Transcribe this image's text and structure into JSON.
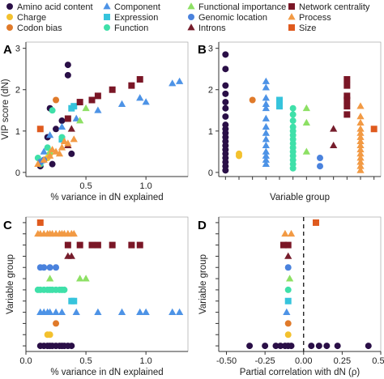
{
  "legend": {
    "items": [
      {
        "label": "Amino acid content",
        "color": "#2a0f47",
        "shape": "circle"
      },
      {
        "label": "Charge",
        "color": "#f3c12e",
        "shape": "circle"
      },
      {
        "label": "Codon bias",
        "color": "#e07a2a",
        "shape": "circle"
      },
      {
        "label": "Component",
        "color": "#4d93e6",
        "shape": "triangle"
      },
      {
        "label": "Expression",
        "color": "#36c4dc",
        "shape": "square"
      },
      {
        "label": "Function",
        "color": "#3fe0a9",
        "shape": "circle"
      },
      {
        "label": "Functional importance",
        "color": "#8de064",
        "shape": "triangle"
      },
      {
        "label": "Genomic location",
        "color": "#4a82dd",
        "shape": "circle"
      },
      {
        "label": "Introns",
        "color": "#761d2c",
        "shape": "triangle"
      },
      {
        "label": "Network centrality",
        "color": "#7a1626",
        "shape": "square"
      },
      {
        "label": "Process",
        "color": "#f29a44",
        "shape": "triangle"
      },
      {
        "label": "Size",
        "color": "#df5a1e",
        "shape": "square"
      }
    ]
  },
  "chart_data": [
    {
      "panel": "A",
      "type": "scatter",
      "xlabel": "% variance in dN explained",
      "ylabel": "VIP score (dN)",
      "xlim": [
        0,
        1.35
      ],
      "ylim": [
        -0.1,
        3.15
      ],
      "xticks": [
        "0.5",
        "1.0"
      ],
      "yticks": [
        "0",
        "1",
        "2",
        "3"
      ],
      "points": [
        {
          "g": 0,
          "x": 0.35,
          "y": 2.6
        },
        {
          "g": 0,
          "x": 0.35,
          "y": 2.35
        },
        {
          "g": 0,
          "x": 0.2,
          "y": 1.55
        },
        {
          "g": 0,
          "x": 0.3,
          "y": 1.25
        },
        {
          "g": 0,
          "x": 0.25,
          "y": 1.05
        },
        {
          "g": 0,
          "x": 0.18,
          "y": 0.85
        },
        {
          "g": 0,
          "x": 0.3,
          "y": 0.8
        },
        {
          "g": 0,
          "x": 0.15,
          "y": 0.3
        },
        {
          "g": 0,
          "x": 0.38,
          "y": 0.45
        },
        {
          "g": 0,
          "x": 0.22,
          "y": 0.2
        },
        {
          "g": 0,
          "x": 0.12,
          "y": 0.15
        },
        {
          "g": 1,
          "x": 0.2,
          "y": 0.45
        },
        {
          "g": 1,
          "x": 0.18,
          "y": 0.35
        },
        {
          "g": 2,
          "x": 0.25,
          "y": 1.75
        },
        {
          "g": 3,
          "x": 1.28,
          "y": 2.2
        },
        {
          "g": 3,
          "x": 1.22,
          "y": 2.15
        },
        {
          "g": 3,
          "x": 1.0,
          "y": 1.7
        },
        {
          "g": 3,
          "x": 0.95,
          "y": 1.8
        },
        {
          "g": 3,
          "x": 0.8,
          "y": 1.65
        },
        {
          "g": 3,
          "x": 0.6,
          "y": 1.5
        },
        {
          "g": 3,
          "x": 0.42,
          "y": 1.3
        },
        {
          "g": 3,
          "x": 0.3,
          "y": 1.1
        },
        {
          "g": 3,
          "x": 0.2,
          "y": 0.9
        },
        {
          "g": 3,
          "x": 0.15,
          "y": 0.5
        },
        {
          "g": 4,
          "x": 0.4,
          "y": 1.6
        },
        {
          "g": 4,
          "x": 0.38,
          "y": 1.55
        },
        {
          "g": 4,
          "x": 0.3,
          "y": 0.8
        },
        {
          "g": 5,
          "x": 0.22,
          "y": 1.5
        },
        {
          "g": 5,
          "x": 0.3,
          "y": 0.85
        },
        {
          "g": 5,
          "x": 0.18,
          "y": 0.6
        },
        {
          "g": 5,
          "x": 0.12,
          "y": 0.2
        },
        {
          "g": 5,
          "x": 0.1,
          "y": 0.35
        },
        {
          "g": 6,
          "x": 0.5,
          "y": 1.55
        },
        {
          "g": 6,
          "x": 0.45,
          "y": 1.25
        },
        {
          "g": 6,
          "x": 0.2,
          "y": 0.5
        },
        {
          "g": 7,
          "x": 0.12,
          "y": 0.25
        },
        {
          "g": 7,
          "x": 0.15,
          "y": 0.3
        },
        {
          "g": 8,
          "x": 0.38,
          "y": 1.05
        },
        {
          "g": 8,
          "x": 0.35,
          "y": 0.65
        },
        {
          "g": 9,
          "x": 0.95,
          "y": 2.25
        },
        {
          "g": 9,
          "x": 0.88,
          "y": 2.1
        },
        {
          "g": 9,
          "x": 0.72,
          "y": 2.0
        },
        {
          "g": 9,
          "x": 0.6,
          "y": 1.85
        },
        {
          "g": 9,
          "x": 0.55,
          "y": 1.75
        },
        {
          "g": 9,
          "x": 0.45,
          "y": 1.7
        },
        {
          "g": 9,
          "x": 0.35,
          "y": 1.3
        },
        {
          "g": 10,
          "x": 0.4,
          "y": 0.8
        },
        {
          "g": 10,
          "x": 0.35,
          "y": 0.7
        },
        {
          "g": 10,
          "x": 0.3,
          "y": 0.6
        },
        {
          "g": 10,
          "x": 0.25,
          "y": 0.5
        },
        {
          "g": 10,
          "x": 0.2,
          "y": 0.4
        },
        {
          "g": 10,
          "x": 0.15,
          "y": 0.3
        },
        {
          "g": 10,
          "x": 0.1,
          "y": 0.2
        },
        {
          "g": 10,
          "x": 0.28,
          "y": 0.45
        },
        {
          "g": 10,
          "x": 0.32,
          "y": 0.75
        },
        {
          "g": 10,
          "x": 0.22,
          "y": 0.55
        },
        {
          "g": 11,
          "x": 0.12,
          "y": 1.05
        }
      ]
    },
    {
      "panel": "B",
      "type": "scatter",
      "xlabel": "Variable group",
      "ylabel": "",
      "ylim": [
        -0.1,
        3.15
      ],
      "yticks": [
        "0",
        "1",
        "2",
        "3"
      ],
      "columns": [
        {
          "g": 0,
          "values": [
            2.85,
            2.5,
            2.1,
            1.9,
            1.7,
            1.55,
            1.35,
            1.15,
            1.05,
            0.95,
            0.85,
            0.75,
            0.65,
            0.55,
            0.45,
            0.35,
            0.25,
            0.15,
            0.05
          ]
        },
        {
          "g": 1,
          "values": [
            0.45,
            0.4
          ]
        },
        {
          "g": 2,
          "values": [
            1.75
          ]
        },
        {
          "g": 3,
          "values": [
            2.2,
            2.05,
            1.8,
            1.65,
            1.55,
            1.3,
            1.1,
            0.95,
            0.8,
            0.65,
            0.5,
            0.4,
            0.3,
            0.2
          ]
        },
        {
          "g": 4,
          "values": [
            1.75,
            1.6
          ]
        },
        {
          "g": 5,
          "values": [
            1.55,
            1.4,
            1.25,
            1.1,
            1.0,
            0.9,
            0.8,
            0.7,
            0.6,
            0.5,
            0.4,
            0.3,
            0.2,
            0.1
          ]
        },
        {
          "g": 6,
          "values": [
            1.55,
            1.2,
            0.5
          ]
        },
        {
          "g": 7,
          "values": [
            0.35,
            0.15
          ]
        },
        {
          "g": 8,
          "values": [
            1.05,
            0.65
          ]
        },
        {
          "g": 9,
          "values": [
            2.25,
            2.1,
            1.85,
            1.75,
            1.6,
            1.4
          ]
        },
        {
          "g": 10,
          "values": [
            1.6,
            1.35,
            1.2,
            1.05,
            0.95,
            0.85,
            0.75,
            0.65,
            0.55,
            0.45,
            0.35,
            0.25,
            0.15,
            0.05
          ]
        },
        {
          "g": 11,
          "values": [
            1.05
          ]
        }
      ]
    },
    {
      "panel": "C",
      "type": "scatter",
      "xlabel": "% variance in dN explained",
      "ylabel": "Variable group",
      "xlim": [
        0,
        1.35
      ],
      "xticks": [
        "0.0",
        "0.5",
        "1.0"
      ],
      "rows": [
        {
          "g": 0,
          "values": [
            0.12,
            0.15,
            0.18,
            0.2,
            0.22,
            0.25,
            0.28,
            0.3,
            0.32,
            0.35,
            0.38
          ]
        },
        {
          "g": 1,
          "values": [
            0.2,
            0.18
          ]
        },
        {
          "g": 2,
          "values": [
            0.25
          ]
        },
        {
          "g": 3,
          "values": [
            0.12,
            0.15,
            0.18,
            0.2,
            0.25,
            0.3,
            0.42,
            0.6,
            0.8,
            0.95,
            1.0,
            1.22,
            1.28
          ]
        },
        {
          "g": 4,
          "values": [
            0.38,
            0.4
          ]
        },
        {
          "g": 5,
          "values": [
            0.1,
            0.12,
            0.15,
            0.18,
            0.2,
            0.22,
            0.25,
            0.28,
            0.3,
            0.32
          ]
        },
        {
          "g": 6,
          "values": [
            0.2,
            0.45,
            0.5
          ]
        },
        {
          "g": 7,
          "values": [
            0.12,
            0.15,
            0.2,
            0.25
          ]
        },
        {
          "g": 8,
          "values": [
            0.35,
            0.38
          ]
        },
        {
          "g": 9,
          "values": [
            0.35,
            0.45,
            0.55,
            0.6,
            0.72,
            0.88,
            0.95
          ]
        },
        {
          "g": 10,
          "values": [
            0.1,
            0.12,
            0.15,
            0.18,
            0.2,
            0.22,
            0.25,
            0.28,
            0.3,
            0.32,
            0.35,
            0.38,
            0.4
          ]
        },
        {
          "g": 11,
          "values": [
            0.12
          ]
        }
      ]
    },
    {
      "panel": "D",
      "type": "scatter",
      "xlabel": "Partial correlation with dN (ρ)",
      "ylabel": "Variable group",
      "xlim": [
        -0.55,
        0.5
      ],
      "xticks": [
        "-0.50",
        "-0.25",
        "0.00",
        "0.25",
        "0.50"
      ],
      "zero_line": 0,
      "rows": [
        {
          "g": 0,
          "values": [
            -0.35,
            -0.25,
            -0.18,
            -0.15,
            -0.12,
            -0.1,
            -0.08,
            0.05,
            0.1,
            0.15,
            0.22,
            0.42
          ]
        },
        {
          "g": 1,
          "values": [
            -0.1
          ]
        },
        {
          "g": 2,
          "values": [
            -0.1
          ]
        },
        {
          "g": 3,
          "values": [
            -0.11
          ]
        },
        {
          "g": 4,
          "values": [
            -0.1
          ]
        },
        {
          "g": 5,
          "values": [
            -0.1
          ]
        },
        {
          "g": 6,
          "values": [
            -0.09
          ]
        },
        {
          "g": 7,
          "values": [
            -0.1
          ]
        },
        {
          "g": 8,
          "values": [
            -0.1
          ]
        },
        {
          "g": 9,
          "values": [
            -0.13,
            -0.1
          ]
        },
        {
          "g": 10,
          "values": [
            -0.12,
            -0.08
          ]
        },
        {
          "g": 11,
          "values": [
            0.08
          ]
        }
      ]
    }
  ]
}
